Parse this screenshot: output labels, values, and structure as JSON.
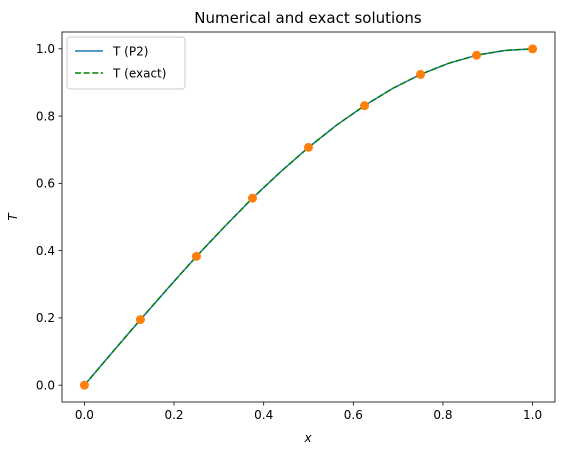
{
  "chart_data": {
    "type": "line",
    "title": "Numerical and exact solutions",
    "xlabel": "x",
    "ylabel": "T",
    "xlim": [
      -0.05,
      1.05
    ],
    "ylim": [
      -0.05,
      1.05
    ],
    "xticks": [
      0.0,
      0.2,
      0.4,
      0.6,
      0.8,
      1.0
    ],
    "yticks": [
      0.0,
      0.2,
      0.4,
      0.6,
      0.8,
      1.0
    ],
    "xtick_labels": [
      "0.0",
      "0.2",
      "0.4",
      "0.6",
      "0.8",
      "1.0"
    ],
    "ytick_labels": [
      "0.0",
      "0.2",
      "0.4",
      "0.6",
      "0.8",
      "1.0"
    ],
    "grid": false,
    "legend_position": "upper-left",
    "series": [
      {
        "name": "T (P2)",
        "style": "solid",
        "color": "#1f77b4",
        "x": [
          0.0,
          0.0625,
          0.125,
          0.1875,
          0.25,
          0.3125,
          0.375,
          0.4375,
          0.5,
          0.5625,
          0.625,
          0.6875,
          0.75,
          0.8125,
          0.875,
          0.9375,
          1.0
        ],
        "y": [
          0.0,
          0.098,
          0.195,
          0.29,
          0.383,
          0.471,
          0.556,
          0.634,
          0.707,
          0.773,
          0.831,
          0.882,
          0.924,
          0.957,
          0.981,
          0.995,
          1.0
        ]
      },
      {
        "name": "T (exact)",
        "style": "dashed",
        "color": "#008000",
        "x": [
          0.0,
          0.0625,
          0.125,
          0.1875,
          0.25,
          0.3125,
          0.375,
          0.4375,
          0.5,
          0.5625,
          0.625,
          0.6875,
          0.75,
          0.8125,
          0.875,
          0.9375,
          1.0
        ],
        "y": [
          0.0,
          0.098,
          0.195,
          0.29,
          0.383,
          0.471,
          0.556,
          0.634,
          0.707,
          0.773,
          0.831,
          0.882,
          0.924,
          0.957,
          0.981,
          0.995,
          1.0
        ]
      },
      {
        "style": "markers",
        "color": "#ff7f0e",
        "x": [
          0.0,
          0.125,
          0.25,
          0.375,
          0.5,
          0.625,
          0.75,
          0.875,
          1.0
        ],
        "y": [
          0.0,
          0.195,
          0.383,
          0.556,
          0.707,
          0.831,
          0.924,
          0.981,
          1.0
        ]
      }
    ]
  }
}
